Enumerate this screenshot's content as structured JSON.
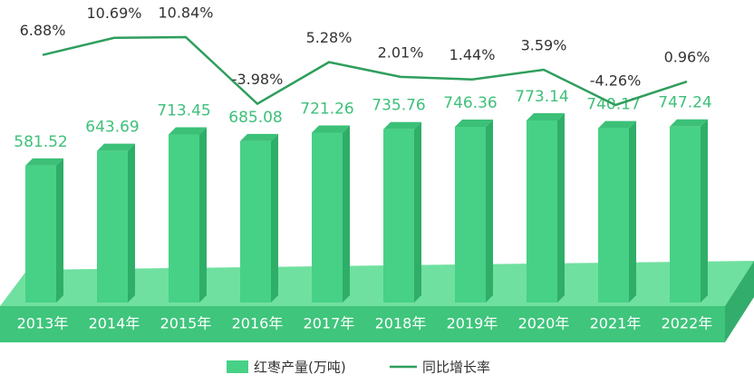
{
  "chart_data": {
    "type": "bar-line",
    "categories": [
      "2013年",
      "2014年",
      "2015年",
      "2016年",
      "2017年",
      "2018年",
      "2019年",
      "2020年",
      "2021年",
      "2022年"
    ],
    "series": [
      {
        "name": "红枣产量(万吨)",
        "type": "bar",
        "color": "#47d186",
        "values": [
          581.52,
          643.69,
          713.45,
          685.08,
          721.26,
          735.76,
          746.36,
          773.14,
          740.17,
          747.24
        ]
      },
      {
        "name": "同比增长率",
        "type": "line",
        "color": "#2f9e5c",
        "values": [
          6.88,
          10.69,
          10.84,
          -3.98,
          5.28,
          2.01,
          1.44,
          3.59,
          -4.26,
          0.96
        ],
        "value_labels": [
          "6.88%",
          "10.69%",
          "10.84%",
          "-3.98%",
          "5.28%",
          "2.01%",
          "1.44%",
          "3.59%",
          "-4.26%",
          "0.96%"
        ]
      }
    ]
  }
}
